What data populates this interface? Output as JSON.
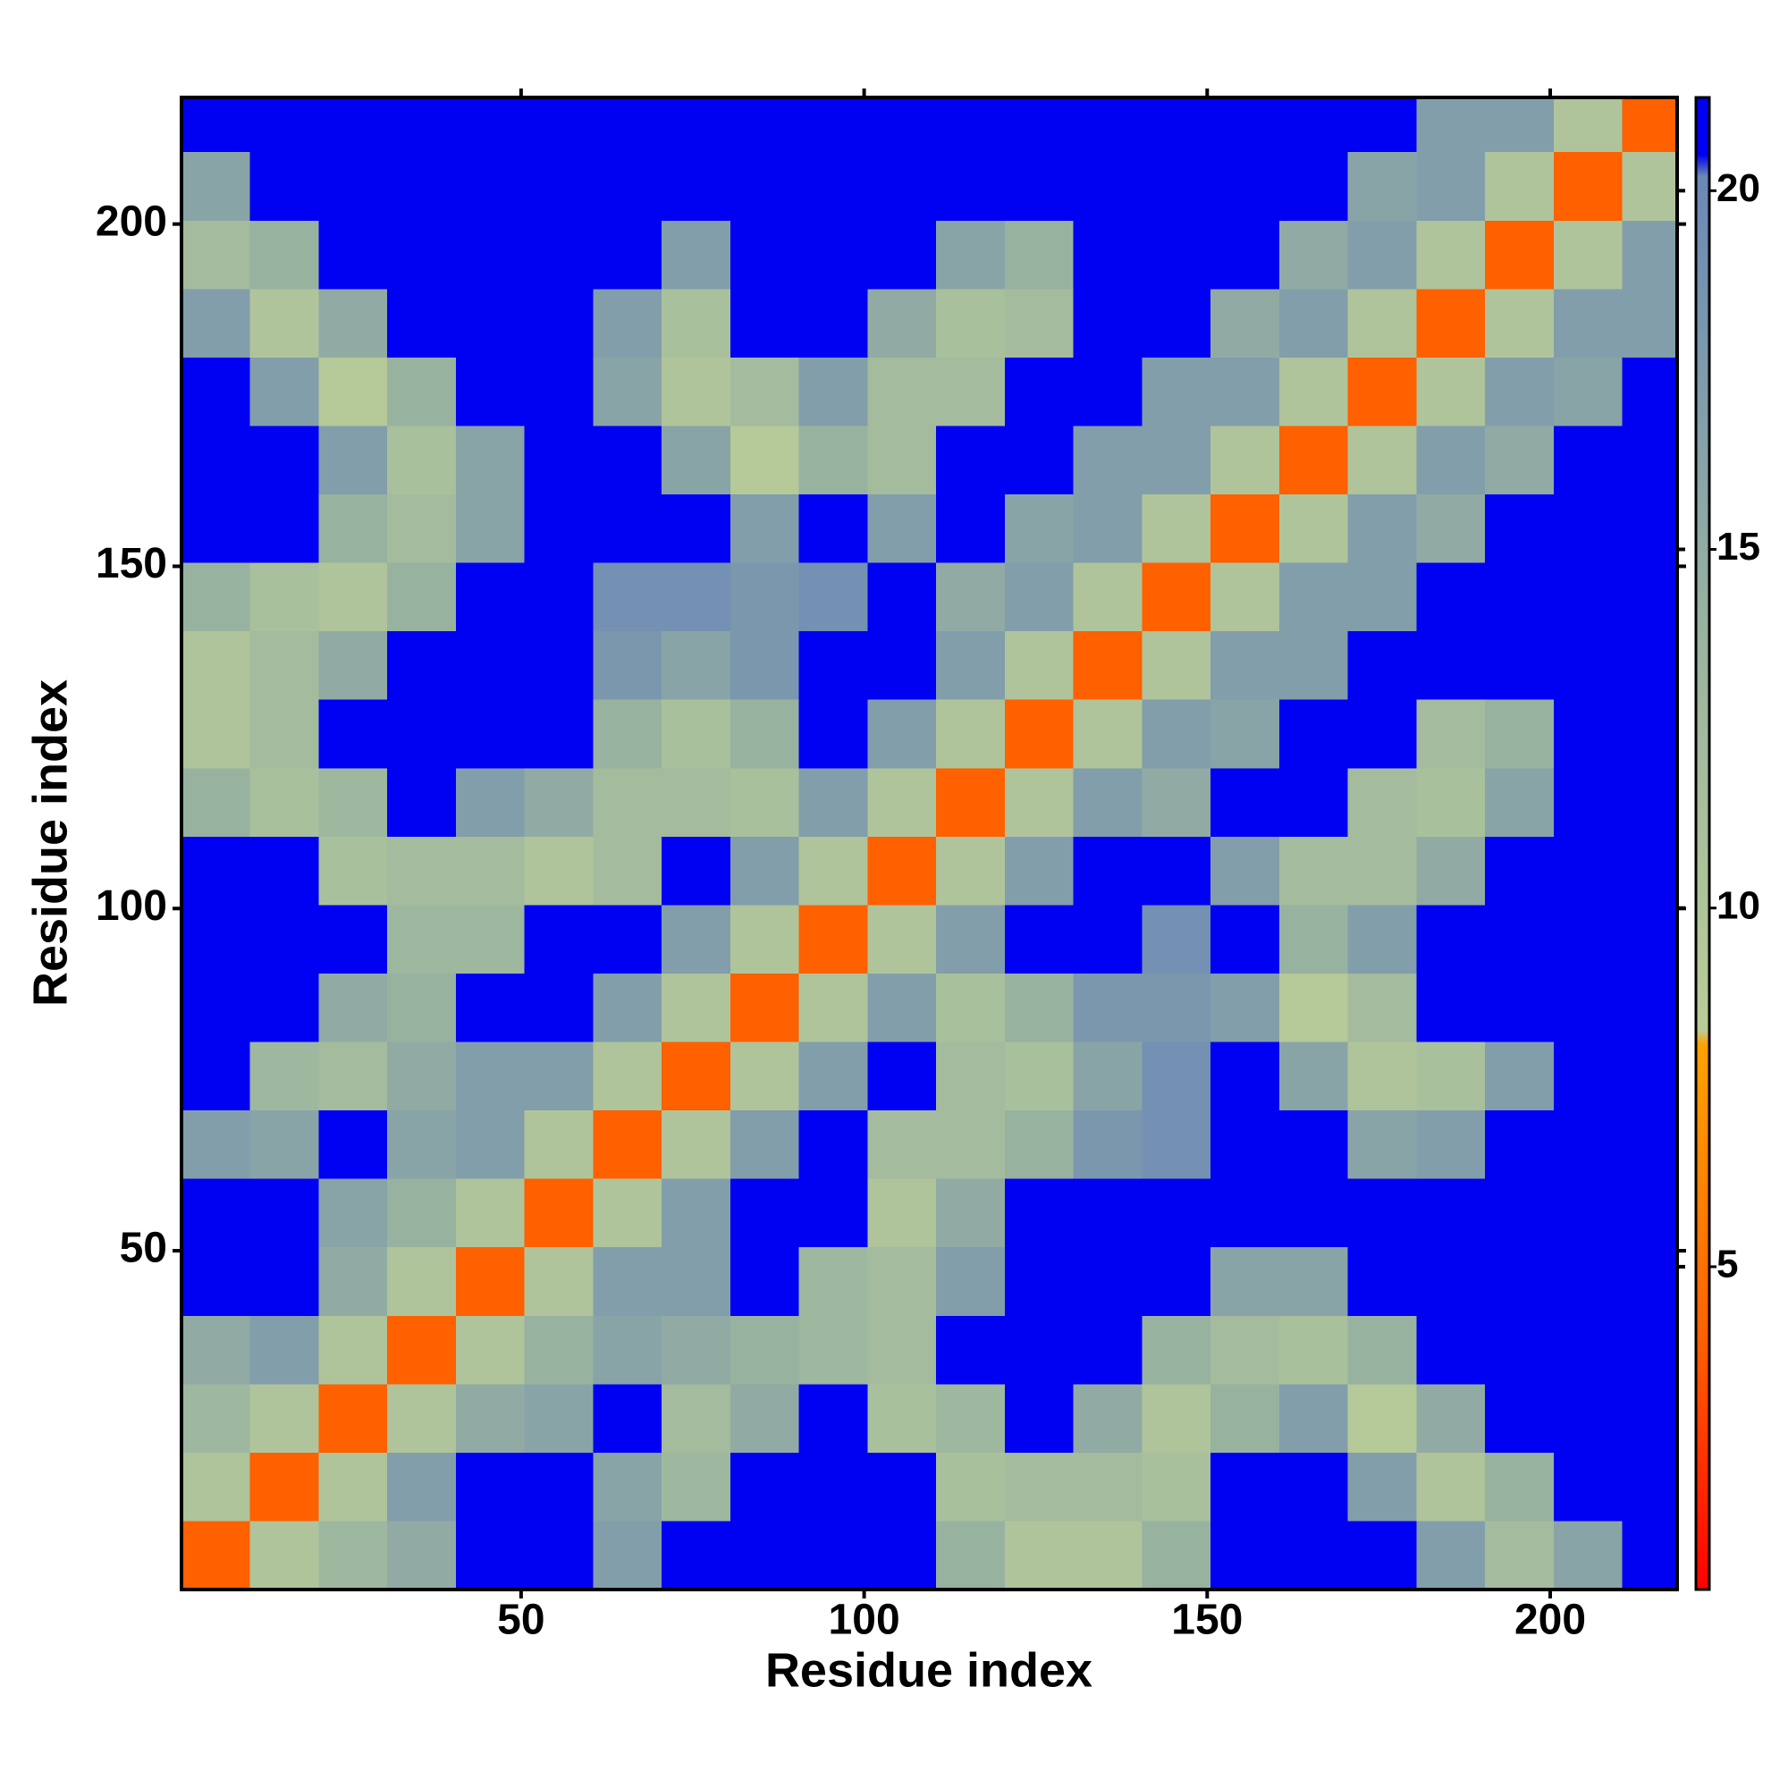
{
  "chart_data": {
    "type": "heatmap",
    "x_label": "Residue index",
    "y_label": "Residue index",
    "xlim": [
      0.5,
      218.5
    ],
    "ylim": [
      0.5,
      218.5
    ],
    "xticks": [
      50,
      100,
      150,
      200
    ],
    "yticks": [
      50,
      100,
      150,
      200
    ],
    "xbins": [
      0.5,
      10.5,
      20.5,
      30.5,
      40.5,
      50.5,
      60.5,
      70.5,
      80.5,
      90.5,
      100.5,
      110.5,
      120.5,
      130.5,
      140.5,
      150.5,
      160.5,
      170.5,
      180.5,
      190.5,
      200.5,
      210.5,
      218.5
    ],
    "ybins": [
      0.5,
      10.5,
      20.5,
      30.5,
      40.5,
      50.5,
      60.5,
      70.5,
      80.5,
      90.5,
      100.5,
      110.5,
      120.5,
      130.5,
      140.5,
      150.5,
      160.5,
      170.5,
      180.5,
      190.5,
      200.5,
      210.5,
      218.5
    ],
    "z": [
      [
        4,
        10,
        13,
        15,
        21,
        21,
        17,
        21,
        21,
        21,
        21,
        14,
        10,
        10,
        14,
        21,
        21,
        21,
        17,
        12,
        16,
        21
      ],
      [
        10,
        4,
        10,
        17,
        21,
        21,
        16,
        13,
        21,
        21,
        21,
        11,
        12,
        12,
        11,
        21,
        21,
        17,
        10,
        14,
        21,
        21
      ],
      [
        13,
        10,
        4,
        10,
        15,
        16,
        21,
        12,
        15,
        21,
        11,
        13,
        21,
        15,
        10,
        14,
        17,
        9,
        15,
        21,
        21,
        21
      ],
      [
        15,
        17,
        10,
        4,
        10,
        14,
        16,
        15,
        14,
        13,
        12,
        21,
        21,
        21,
        14,
        12,
        11,
        14,
        21,
        21,
        21,
        21
      ],
      [
        21,
        21,
        15,
        10,
        4,
        10,
        17,
        17,
        21,
        13,
        12,
        17,
        21,
        21,
        21,
        16,
        16,
        21,
        21,
        21,
        21,
        21
      ],
      [
        21,
        21,
        16,
        14,
        10,
        4,
        10,
        17,
        21,
        21,
        10,
        15,
        21,
        21,
        21,
        21,
        21,
        21,
        21,
        21,
        21,
        21
      ],
      [
        17,
        16,
        21,
        16,
        17,
        10,
        4,
        10,
        17,
        21,
        12,
        12,
        14,
        18,
        19,
        21,
        21,
        16,
        17,
        21,
        21,
        21
      ],
      [
        21,
        13,
        12,
        15,
        17,
        17,
        10,
        4,
        10,
        17,
        21,
        12,
        11,
        16,
        19,
        21,
        16,
        10,
        11,
        17,
        21,
        21
      ],
      [
        21,
        21,
        15,
        14,
        21,
        21,
        17,
        10,
        4,
        10,
        17,
        11,
        14,
        18,
        18,
        17,
        9,
        12,
        21,
        21,
        21,
        21
      ],
      [
        21,
        21,
        21,
        13,
        13,
        21,
        21,
        17,
        10,
        4,
        10,
        17,
        21,
        21,
        19,
        21,
        14,
        17,
        21,
        21,
        21,
        21
      ],
      [
        21,
        21,
        11,
        12,
        12,
        10,
        12,
        21,
        17,
        10,
        4,
        10,
        17,
        21,
        21,
        17,
        12,
        12,
        15,
        21,
        21,
        21
      ],
      [
        14,
        11,
        13,
        21,
        17,
        15,
        12,
        12,
        11,
        17,
        10,
        4,
        10,
        17,
        15,
        21,
        21,
        12,
        11,
        16,
        21,
        21
      ],
      [
        10,
        12,
        21,
        21,
        21,
        21,
        14,
        11,
        14,
        21,
        17,
        10,
        4,
        10,
        17,
        16,
        21,
        21,
        12,
        14,
        21,
        21
      ],
      [
        10,
        12,
        15,
        21,
        21,
        21,
        18,
        16,
        18,
        21,
        21,
        17,
        10,
        4,
        10,
        17,
        17,
        21,
        21,
        21,
        21,
        21
      ],
      [
        14,
        11,
        10,
        14,
        21,
        21,
        19,
        19,
        18,
        19,
        21,
        15,
        17,
        10,
        4,
        10,
        17,
        17,
        21,
        21,
        21,
        21
      ],
      [
        21,
        21,
        14,
        12,
        16,
        21,
        21,
        21,
        17,
        21,
        17,
        21,
        16,
        17,
        10,
        4,
        10,
        17,
        15,
        21,
        21,
        21
      ],
      [
        21,
        21,
        17,
        11,
        16,
        21,
        21,
        16,
        9,
        14,
        12,
        21,
        21,
        17,
        17,
        10,
        4,
        10,
        17,
        15,
        21,
        21
      ],
      [
        21,
        17,
        9,
        14,
        21,
        21,
        16,
        10,
        12,
        17,
        12,
        12,
        21,
        21,
        17,
        17,
        10,
        4,
        10,
        17,
        16,
        21
      ],
      [
        17,
        10,
        15,
        21,
        21,
        21,
        17,
        11,
        21,
        21,
        15,
        11,
        12,
        21,
        21,
        15,
        17,
        10,
        4,
        10,
        17,
        17
      ],
      [
        12,
        14,
        21,
        21,
        21,
        21,
        21,
        17,
        21,
        21,
        21,
        16,
        14,
        21,
        21,
        21,
        15,
        17,
        10,
        4,
        10,
        17
      ],
      [
        16,
        21,
        21,
        21,
        21,
        21,
        21,
        21,
        21,
        21,
        21,
        21,
        21,
        21,
        21,
        21,
        21,
        16,
        17,
        10,
        4,
        10
      ],
      [
        21,
        21,
        21,
        21,
        21,
        21,
        21,
        21,
        21,
        21,
        21,
        21,
        21,
        21,
        21,
        21,
        21,
        21,
        17,
        17,
        10,
        4
      ]
    ],
    "zlim": [
      0.5,
      21.3
    ],
    "zticks": [
      5,
      10,
      15,
      20
    ],
    "colorscale": [
      {
        "value": 0.5,
        "color": "#ff0000"
      },
      {
        "value": 4,
        "color": "#ff6000"
      },
      {
        "value": 8.1,
        "color": "#ffa200"
      },
      {
        "value": 8.3,
        "color": "#b9cc98"
      },
      {
        "value": 14,
        "color": "#98b2a0"
      },
      {
        "value": 20.2,
        "color": "#6b88b6"
      },
      {
        "value": 20.5,
        "color": "#0000f2"
      },
      {
        "value": 21.3,
        "color": "#0000f2"
      }
    ]
  }
}
